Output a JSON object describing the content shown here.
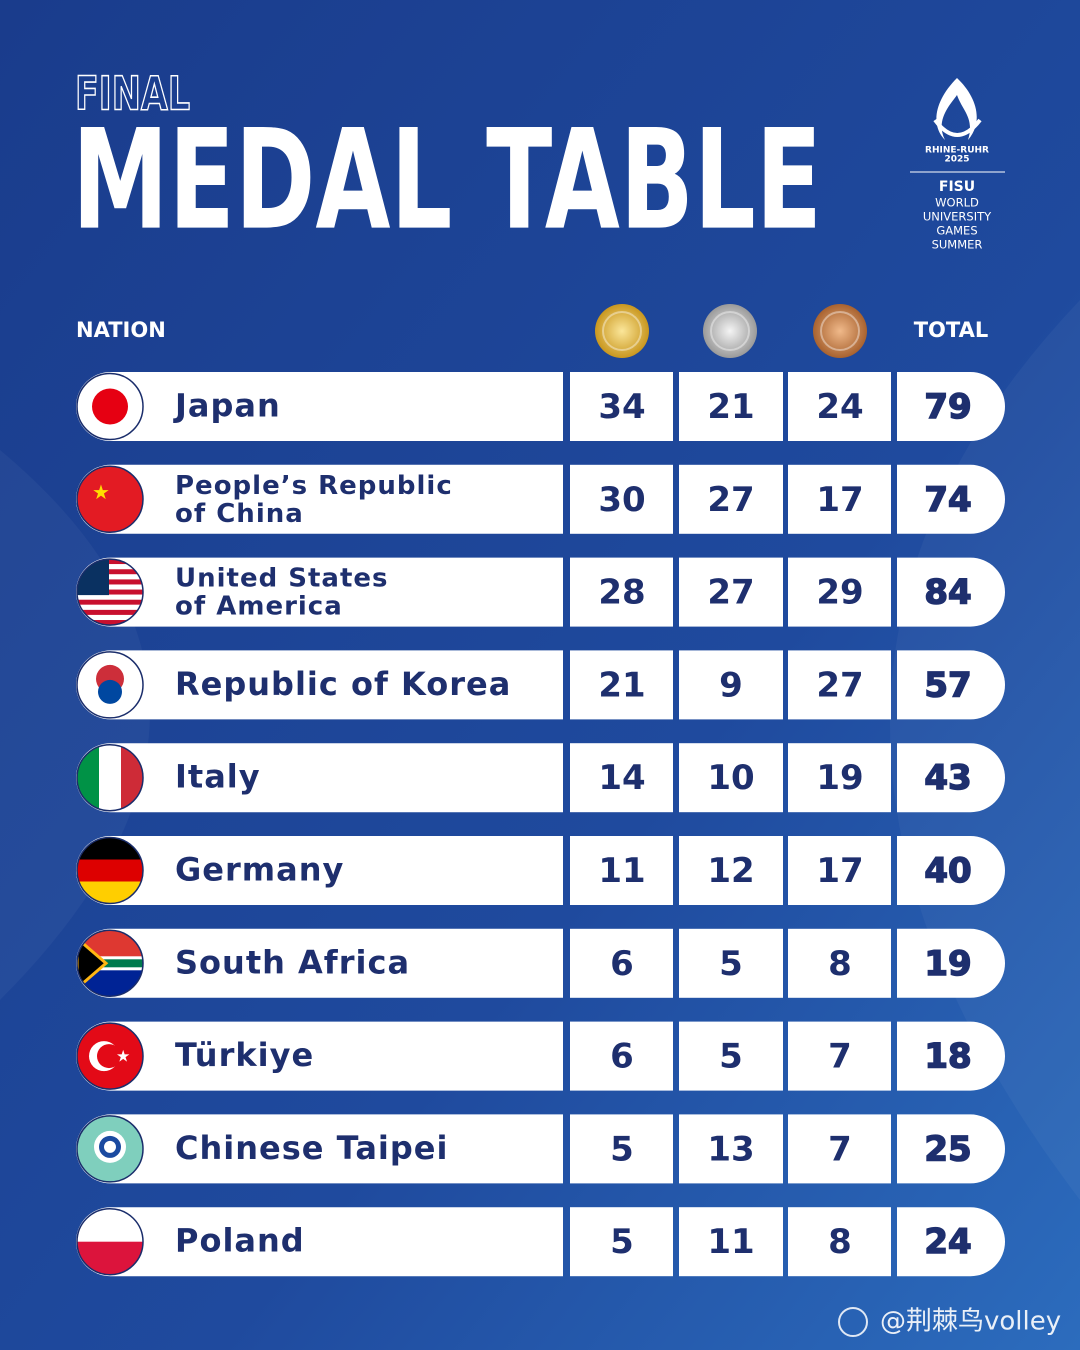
{
  "header": {
    "kicker": "FINAL",
    "title": "MEDAL TABLE"
  },
  "logo": {
    "lines": [
      "RHINE-RUHR",
      "2025"
    ],
    "org": "FISU",
    "event": [
      "WORLD",
      "UNIVERSITY",
      "GAMES",
      "SUMMER"
    ]
  },
  "table": {
    "columns": {
      "nation": "NATION",
      "total": "TOTAL"
    },
    "rows": [
      {
        "nation": [
          "Japan"
        ],
        "gold": 34,
        "silver": 21,
        "bronze": 24,
        "total": 79
      },
      {
        "nation": [
          "People’s Republic",
          "of China"
        ],
        "gold": 30,
        "silver": 27,
        "bronze": 17,
        "total": 74
      },
      {
        "nation": [
          "United States",
          "of America"
        ],
        "gold": 28,
        "silver": 27,
        "bronze": 29,
        "total": 84
      },
      {
        "nation": [
          "Republic of Korea"
        ],
        "gold": 21,
        "silver": 9,
        "bronze": 27,
        "total": 57
      },
      {
        "nation": [
          "Italy"
        ],
        "gold": 14,
        "silver": 10,
        "bronze": 19,
        "total": 43
      },
      {
        "nation": [
          "Germany"
        ],
        "gold": 11,
        "silver": 12,
        "bronze": 17,
        "total": 40
      },
      {
        "nation": [
          "South Africa"
        ],
        "gold": 6,
        "silver": 5,
        "bronze": 8,
        "total": 19
      },
      {
        "nation": [
          "Türkiye"
        ],
        "gold": 6,
        "silver": 5,
        "bronze": 7,
        "total": 18
      },
      {
        "nation": [
          "Chinese Taipei"
        ],
        "gold": 5,
        "silver": 13,
        "bronze": 7,
        "total": 25
      },
      {
        "nation": [
          "Poland"
        ],
        "gold": 5,
        "silver": 11,
        "bronze": 8,
        "total": 24
      }
    ]
  },
  "watermark": "@荆棘鸟volley"
}
